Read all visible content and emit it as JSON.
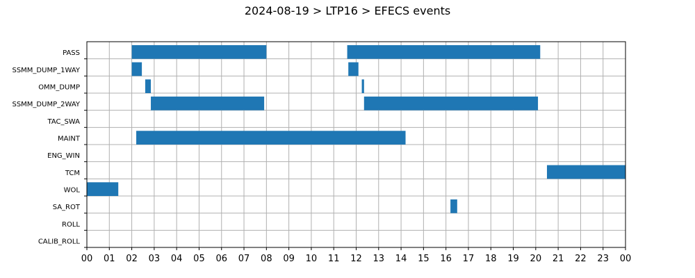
{
  "chart_data": {
    "type": "gantt",
    "title": "2024-08-19 > LTP16 > EFECS events",
    "x_unit": "hour",
    "xlim": [
      0,
      24
    ],
    "x_tick_labels": [
      "00",
      "01",
      "02",
      "03",
      "04",
      "05",
      "06",
      "07",
      "08",
      "09",
      "10",
      "11",
      "12",
      "13",
      "14",
      "15",
      "16",
      "17",
      "18",
      "19",
      "20",
      "21",
      "22",
      "23",
      "00"
    ],
    "categories": [
      "PASS",
      "SSMM_DUMP_1WAY",
      "OMM_DUMP",
      "SSMM_DUMP_2WAY",
      "TAC_SWA",
      "MAINT",
      "ENG_WIN",
      "TCM",
      "WOL",
      "SA_ROT",
      "ROLL",
      "CALIB_ROLL"
    ],
    "grid": true,
    "bar_color": "#1f77b4",
    "events": [
      {
        "category": "PASS",
        "start": 2.0,
        "end": 8.0
      },
      {
        "category": "PASS",
        "start": 11.6,
        "end": 20.2
      },
      {
        "category": "SSMM_DUMP_1WAY",
        "start": 2.0,
        "end": 2.45
      },
      {
        "category": "SSMM_DUMP_1WAY",
        "start": 11.65,
        "end": 12.1
      },
      {
        "category": "OMM_DUMP",
        "start": 2.6,
        "end": 2.85
      },
      {
        "category": "OMM_DUMP",
        "start": 12.25,
        "end": 12.35
      },
      {
        "category": "SSMM_DUMP_2WAY",
        "start": 2.85,
        "end": 7.9
      },
      {
        "category": "SSMM_DUMP_2WAY",
        "start": 12.35,
        "end": 20.1
      },
      {
        "category": "MAINT",
        "start": 2.2,
        "end": 14.2
      },
      {
        "category": "TCM",
        "start": 20.5,
        "end": 24.0
      },
      {
        "category": "WOL",
        "start": 0.0,
        "end": 1.4
      },
      {
        "category": "SA_ROT",
        "start": 16.2,
        "end": 16.5
      }
    ]
  }
}
